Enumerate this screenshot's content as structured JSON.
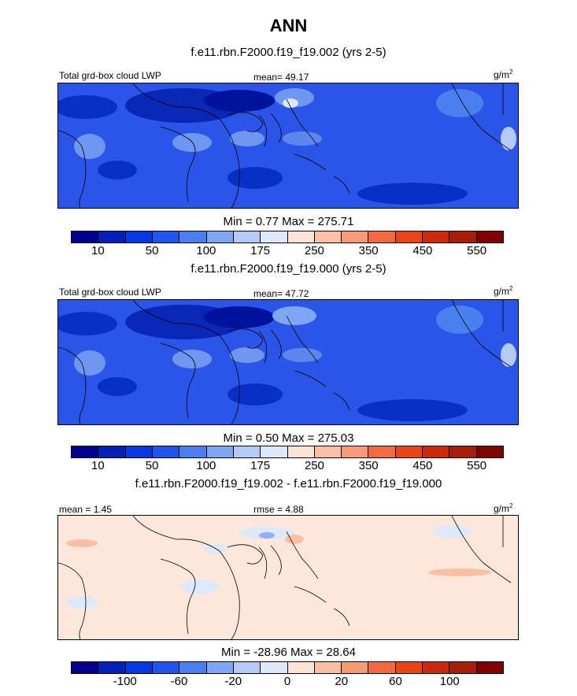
{
  "title": "ANN",
  "units_base": "g/m",
  "units_exp": "2",
  "panels": [
    {
      "case": "f.e11.rbn.F2000.f19_f19.002 (yrs 2-5)",
      "left_label": "Total grd-box cloud LWP",
      "center_label": "mean=  49.17",
      "minmax": "Min =   0.77 Max = 275.71",
      "colors": [
        "#00008f",
        "#0020b8",
        "#0538e0",
        "#2255ee",
        "#4a7ff0",
        "#7fa6f2",
        "#b3c9f6",
        "#dde8fb",
        "#fbe3d6",
        "#f9bfa5",
        "#f79a76",
        "#f36a42",
        "#ea4418",
        "#cc2a0a",
        "#a61e08",
        "#800000"
      ],
      "tick_labels": [
        "10",
        "50",
        "100",
        "175",
        "250",
        "350",
        "450",
        "550"
      ],
      "base_color": "#2a55e8"
    },
    {
      "case": "f.e11.rbn.F2000.f19_f19.000 (yrs 2-5)",
      "left_label": "Total grd-box cloud LWP",
      "center_label": "mean=  47.72",
      "minmax": "Min =   0.50 Max = 275.03",
      "colors": [
        "#00008f",
        "#0020b8",
        "#0538e0",
        "#2255ee",
        "#4a7ff0",
        "#7fa6f2",
        "#b3c9f6",
        "#dde8fb",
        "#fbe3d6",
        "#f9bfa5",
        "#f79a76",
        "#f36a42",
        "#ea4418",
        "#cc2a0a",
        "#a61e08",
        "#800000"
      ],
      "tick_labels": [
        "10",
        "50",
        "100",
        "175",
        "250",
        "350",
        "450",
        "550"
      ],
      "base_color": "#2a55e8"
    },
    {
      "case": "f.e11.rbn.F2000.f19_f19.002 - f.e11.rbn.F2000.f19_f19.000",
      "left_label": "mean =   1.45",
      "center_label": "rmse =   4.88",
      "minmax": "Min = -28.96 Max =  28.64",
      "colors": [
        "#00008f",
        "#0020b8",
        "#0538e0",
        "#2255ee",
        "#4a7ff0",
        "#7fa6f2",
        "#b3c9f6",
        "#dde8fb",
        "#fbe3d6",
        "#f9bfa5",
        "#f79a76",
        "#f36a42",
        "#ea4418",
        "#cc2a0a",
        "#a61e08",
        "#800000"
      ],
      "tick_labels": [
        "-100",
        "-60",
        "-20",
        "0",
        "20",
        "60",
        "100"
      ],
      "base_color": "#fde7db"
    }
  ]
}
